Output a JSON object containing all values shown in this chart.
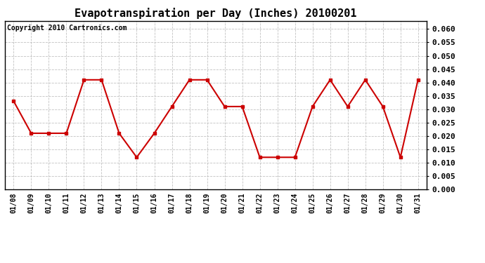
{
  "title": "Evapotranspiration per Day (Inches) 20100201",
  "copyright_text": "Copyright 2010 Cartronics.com",
  "x_labels": [
    "01/08",
    "01/09",
    "01/10",
    "01/11",
    "01/12",
    "01/13",
    "01/14",
    "01/15",
    "01/16",
    "01/17",
    "01/18",
    "01/19",
    "01/20",
    "01/21",
    "01/22",
    "01/23",
    "01/24",
    "01/25",
    "01/26",
    "01/27",
    "01/28",
    "01/29",
    "01/30",
    "01/31"
  ],
  "y_values": [
    0.033,
    0.021,
    0.021,
    0.021,
    0.041,
    0.041,
    0.021,
    0.012,
    0.021,
    0.031,
    0.041,
    0.041,
    0.031,
    0.031,
    0.012,
    0.012,
    0.012,
    0.031,
    0.041,
    0.031,
    0.041,
    0.031,
    0.012,
    0.041
  ],
  "ylim": [
    0.0,
    0.063
  ],
  "yticks": [
    0.0,
    0.005,
    0.01,
    0.015,
    0.02,
    0.025,
    0.03,
    0.035,
    0.04,
    0.045,
    0.05,
    0.055,
    0.06
  ],
  "line_color": "#cc0000",
  "marker": "s",
  "marker_size": 2.5,
  "line_width": 1.5,
  "grid_color": "#bbbbbb",
  "background_color": "#ffffff",
  "title_fontsize": 11,
  "copyright_fontsize": 7,
  "tick_fontsize": 7,
  "ytick_fontsize": 8,
  "figwidth": 6.9,
  "figheight": 3.75,
  "dpi": 100
}
